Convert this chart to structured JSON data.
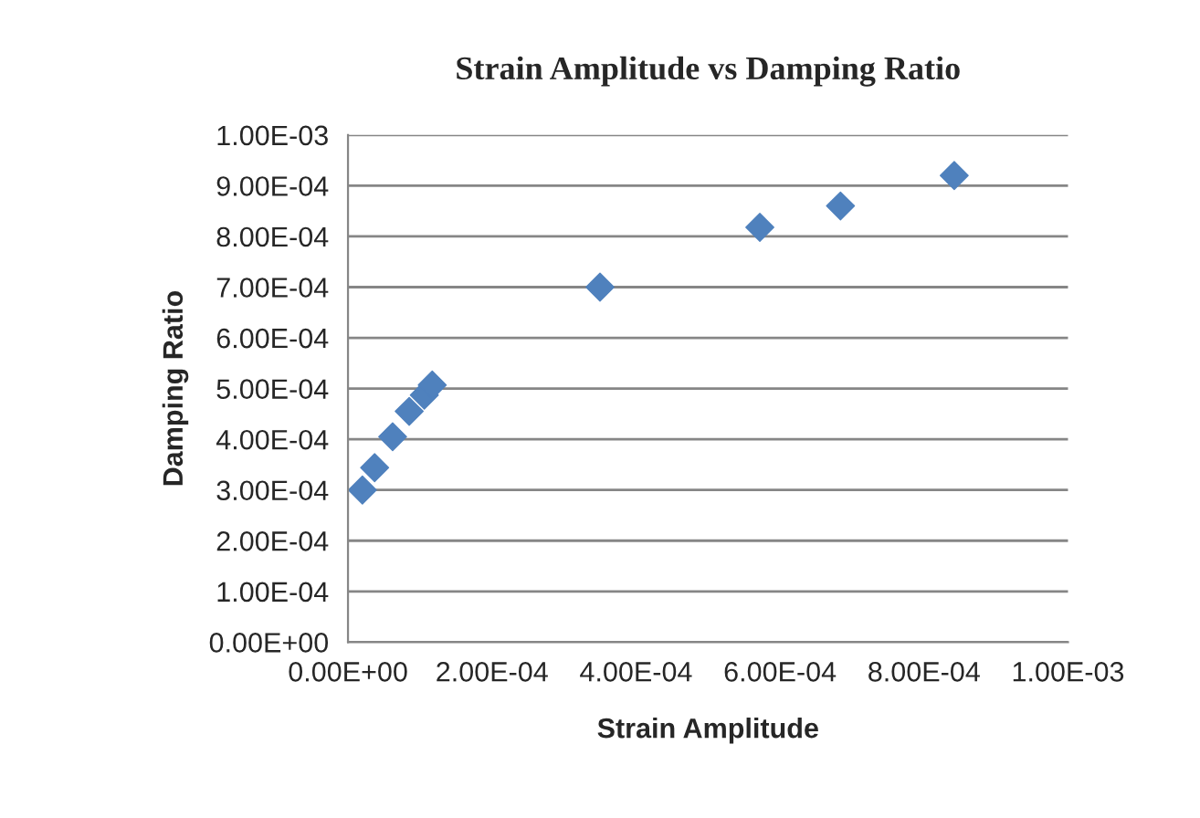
{
  "chart_data": {
    "type": "scatter",
    "title": "Strain Amplitude vs Damping Ratio",
    "xlabel": "Strain Amplitude",
    "ylabel": "Damping Ratio",
    "x": [
      2e-05,
      3.7e-05,
      6.2e-05,
      8.5e-05,
      0.000106,
      0.000117,
      0.00035,
      0.000572,
      0.000684,
      0.000842
    ],
    "series": [
      {
        "color": "#4f81bd",
        "values": [
          0.0003,
          0.000344,
          0.000405,
          0.000455,
          0.000487,
          0.000507,
          0.0007,
          0.000818,
          0.00086,
          0.00092
        ]
      }
    ],
    "marker": "diamond",
    "grid": "y",
    "legend": false,
    "xlim": [
      0,
      0.001
    ],
    "ylim": [
      0,
      0.001
    ],
    "xticks": [
      {
        "value": 0,
        "label": "0.00E+00"
      },
      {
        "value": 0.0002,
        "label": "2.00E-04"
      },
      {
        "value": 0.0004,
        "label": "4.00E-04"
      },
      {
        "value": 0.0006,
        "label": "6.00E-04"
      },
      {
        "value": 0.0008,
        "label": "8.00E-04"
      },
      {
        "value": 0.001,
        "label": "1.00E-03"
      }
    ],
    "yticks": [
      {
        "value": 0,
        "label": "0.00E+00"
      },
      {
        "value": 0.0001,
        "label": "1.00E-04"
      },
      {
        "value": 0.0002,
        "label": "2.00E-04"
      },
      {
        "value": 0.0003,
        "label": "3.00E-04"
      },
      {
        "value": 0.0004,
        "label": "4.00E-04"
      },
      {
        "value": 0.0005,
        "label": "5.00E-04"
      },
      {
        "value": 0.0006,
        "label": "6.00E-04"
      },
      {
        "value": 0.0007,
        "label": "7.00E-04"
      },
      {
        "value": 0.0008,
        "label": "8.00E-04"
      },
      {
        "value": 0.0009,
        "label": "9.00E-04"
      },
      {
        "value": 0.001,
        "label": "1.00E-03"
      }
    ]
  }
}
